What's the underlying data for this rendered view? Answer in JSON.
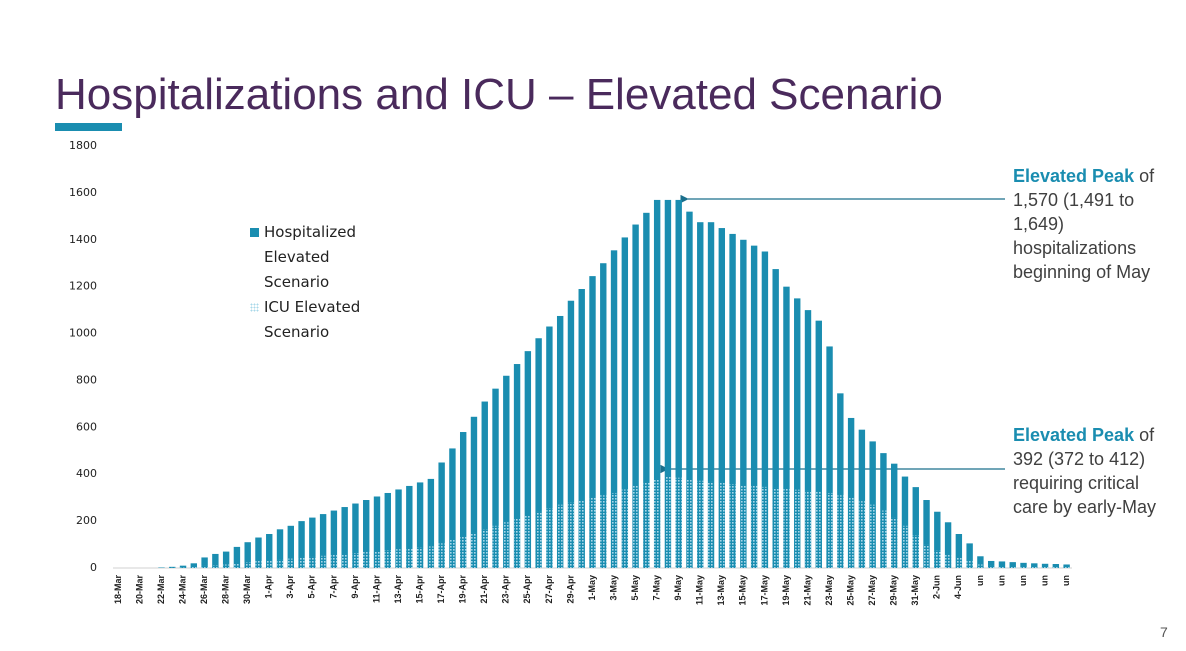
{
  "chart_data": {
    "type": "bar",
    "title": "Hospitalizations and ICU – Elevated Scenario",
    "page_number": "7",
    "categories": [
      "18-Mar",
      null,
      "20-Mar",
      null,
      "22-Mar",
      null,
      "24-Mar",
      null,
      "26-Mar",
      null,
      "28-Mar",
      null,
      "30-Mar",
      null,
      "1-Apr",
      null,
      "3-Apr",
      null,
      "5-Apr",
      null,
      "7-Apr",
      null,
      "9-Apr",
      null,
      "11-Apr",
      null,
      "13-Apr",
      null,
      "15-Apr",
      null,
      "17-Apr",
      null,
      "19-Apr",
      null,
      "21-Apr",
      null,
      "23-Apr",
      null,
      "25-Apr",
      null,
      "27-Apr",
      null,
      "29-Apr",
      null,
      "1-May",
      null,
      "3-May",
      null,
      "5-May",
      null,
      "7-May",
      null,
      "9-May",
      null,
      "11-May",
      null,
      "13-May",
      null,
      "15-May",
      null,
      "17-May",
      null,
      "19-May",
      null,
      "21-May",
      null,
      "23-May",
      null,
      "25-May",
      null,
      "27-May",
      null,
      "29-May",
      null,
      "31-May",
      null,
      "2-Jun",
      null,
      "4-Jun",
      null,
      "un",
      null,
      "un",
      null,
      "un",
      null,
      "un",
      null,
      "un"
    ],
    "series": [
      {
        "name": "Hospitalized Elevated Scenario",
        "color": "#1a8db0",
        "values": [
          0,
          0,
          0,
          0,
          2,
          5,
          10,
          20,
          45,
          60,
          70,
          90,
          110,
          130,
          145,
          165,
          180,
          200,
          215,
          230,
          245,
          260,
          275,
          290,
          305,
          320,
          335,
          350,
          365,
          380,
          450,
          510,
          580,
          645,
          710,
          765,
          820,
          870,
          925,
          980,
          1030,
          1075,
          1140,
          1190,
          1245,
          1300,
          1355,
          1410,
          1465,
          1515,
          1570,
          1570,
          1570,
          1520,
          1475,
          1475,
          1450,
          1425,
          1400,
          1375,
          1350,
          1275,
          1200,
          1150,
          1100,
          1055,
          945,
          745,
          640,
          590,
          540,
          490,
          445,
          390,
          345,
          290,
          240,
          195,
          145,
          105,
          50,
          30,
          28,
          25,
          22,
          20,
          18,
          17,
          15
        ]
      },
      {
        "name": "ICU Elevated Scenario",
        "color": "#a9d8ea",
        "values": [
          0,
          0,
          0,
          0,
          0,
          1,
          2,
          5,
          10,
          12,
          15,
          20,
          25,
          30,
          33,
          36,
          40,
          44,
          48,
          52,
          56,
          60,
          64,
          68,
          72,
          76,
          80,
          84,
          88,
          92,
          105,
          120,
          135,
          150,
          165,
          180,
          195,
          210,
          225,
          240,
          255,
          270,
          280,
          290,
          300,
          310,
          320,
          335,
          350,
          365,
          380,
          392,
          385,
          378,
          372,
          368,
          363,
          358,
          354,
          350,
          346,
          342,
          338,
          334,
          330,
          326,
          320,
          310,
          300,
          285,
          270,
          245,
          215,
          180,
          140,
          100,
          75,
          60,
          45,
          30,
          15,
          10,
          8,
          7,
          6,
          5,
          5,
          4,
          4
        ]
      }
    ],
    "ylim": [
      0,
      1800
    ],
    "yticks": [
      0,
      200,
      400,
      600,
      800,
      1000,
      1200,
      1400,
      1600,
      1800
    ],
    "annotations": [
      {
        "bold": "Elevated Peak",
        "text": "of 1,570 (1,491 to 1,649) hospitalizations beginning of May"
      },
      {
        "bold": "Elevated Peak",
        "text": "of 392 (372 to 412) requiring critical care by early-May"
      }
    ]
  }
}
